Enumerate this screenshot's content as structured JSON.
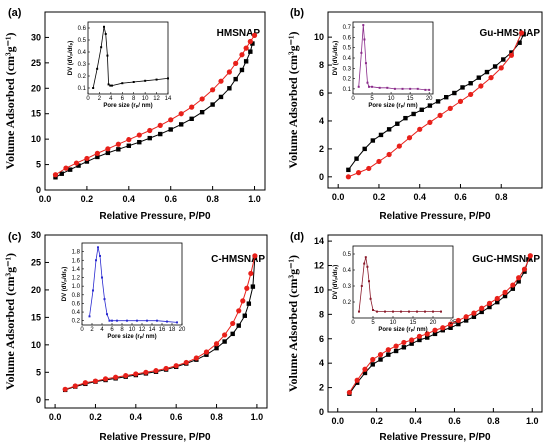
{
  "chart_data": [
    {
      "type": "line",
      "panel": "(a)",
      "sample": "HMSNAP",
      "xlabel": "Relative Pressure, P/P0",
      "ylabel": "Volume Adsorbed (cm³g⁻¹)",
      "xlim": [
        0,
        1.05
      ],
      "ylim": [
        0,
        35
      ],
      "xticks": [
        "0.0",
        "0.2",
        "0.4",
        "0.6",
        "0.8",
        "1.0"
      ],
      "yticks": [
        "0",
        "5",
        "10",
        "15",
        "20",
        "25",
        "30"
      ],
      "series": [
        {
          "color": "#000000",
          "marker": "square",
          "x": [
            0.05,
            0.08,
            0.12,
            0.16,
            0.2,
            0.25,
            0.3,
            0.35,
            0.4,
            0.45,
            0.5,
            0.55,
            0.6,
            0.65,
            0.7,
            0.75,
            0.8,
            0.84,
            0.88,
            0.91,
            0.94,
            0.96,
            0.98,
            0.99
          ],
          "y": [
            2.5,
            3.2,
            4.0,
            4.8,
            5.6,
            6.5,
            7.3,
            8.0,
            8.7,
            9.4,
            10.2,
            11.0,
            11.9,
            12.9,
            14.0,
            15.3,
            16.8,
            18.3,
            20.0,
            21.8,
            23.6,
            25.3,
            27.2,
            28.8
          ]
        },
        {
          "color": "#e8201a",
          "marker": "circle",
          "x": [
            0.05,
            0.1,
            0.15,
            0.2,
            0.25,
            0.3,
            0.35,
            0.4,
            0.45,
            0.5,
            0.55,
            0.6,
            0.65,
            0.7,
            0.75,
            0.8,
            0.84,
            0.88,
            0.91,
            0.94,
            0.96,
            0.98,
            1.0
          ],
          "y": [
            3.0,
            4.3,
            5.3,
            6.2,
            7.2,
            8.1,
            9.0,
            9.9,
            10.8,
            11.7,
            12.7,
            13.8,
            15.0,
            16.3,
            17.9,
            19.7,
            21.4,
            23.2,
            24.9,
            26.6,
            27.9,
            29.2,
            30.4
          ]
        }
      ],
      "inset": {
        "xlabel": "Pore size (rₚ/ nm)",
        "ylabel": "DV (dVₚ/drₚ)",
        "xlim": [
          0,
          14
        ],
        "ylim": [
          0.05,
          0.65
        ],
        "xticks": [
          "0",
          "2",
          "4",
          "6",
          "8",
          "10",
          "12",
          "14"
        ],
        "yticks": [
          "0.1",
          "0.2",
          "0.3",
          "0.4",
          "0.5",
          "0.6"
        ],
        "color": "#000000",
        "x": [
          0.9,
          1.6,
          2.3,
          2.8,
          3.1,
          3.4,
          3.6,
          3.9,
          4.2,
          6,
          8,
          10,
          12,
          14
        ],
        "y": [
          0.1,
          0.26,
          0.44,
          0.61,
          0.55,
          0.37,
          0.13,
          0.12,
          0.12,
          0.14,
          0.15,
          0.16,
          0.17,
          0.18
        ]
      }
    },
    {
      "type": "line",
      "panel": "(b)",
      "sample": "Gu-HMSNAP",
      "xlabel": "Relative Pressure, P/P0",
      "ylabel": "Volume Adsorbed (cm³g⁻¹)",
      "xlim": [
        -0.05,
        1.0
      ],
      "ylim": [
        -0.8,
        11.8
      ],
      "xticks": [
        "0.0",
        "0.2",
        "0.4",
        "0.6",
        "0.8"
      ],
      "yticks": [
        "0",
        "2",
        "4",
        "6",
        "8",
        "10"
      ],
      "series": [
        {
          "color": "#000000",
          "marker": "square",
          "x": [
            0.05,
            0.09,
            0.13,
            0.17,
            0.21,
            0.25,
            0.29,
            0.33,
            0.37,
            0.41,
            0.45,
            0.49,
            0.53,
            0.57,
            0.61,
            0.65,
            0.69,
            0.73,
            0.77,
            0.81,
            0.85,
            0.89,
            0.91
          ],
          "y": [
            0.5,
            1.3,
            2.0,
            2.6,
            3.0,
            3.4,
            3.8,
            4.2,
            4.5,
            4.8,
            5.1,
            5.4,
            5.7,
            6.0,
            6.4,
            6.7,
            7.1,
            7.5,
            7.9,
            8.4,
            8.9,
            9.6,
            10.2
          ]
        },
        {
          "color": "#e8201a",
          "marker": "circle",
          "x": [
            0.05,
            0.1,
            0.15,
            0.2,
            0.25,
            0.3,
            0.35,
            0.4,
            0.45,
            0.5,
            0.55,
            0.6,
            0.65,
            0.7,
            0.75,
            0.8,
            0.85,
            0.9
          ],
          "y": [
            0.0,
            0.3,
            0.6,
            1.1,
            1.6,
            2.2,
            2.8,
            3.4,
            3.9,
            4.4,
            4.9,
            5.4,
            5.9,
            6.5,
            7.1,
            7.8,
            8.7,
            10.3
          ]
        }
      ],
      "inset": {
        "xlabel": "Pore size (rₚ/ nm)",
        "ylabel": "DV (dVₚ/drₚ)",
        "xlim": [
          0,
          21
        ],
        "ylim": [
          0.05,
          0.75
        ],
        "xticks": [
          "0",
          "5",
          "10",
          "15",
          "20"
        ],
        "yticks": [
          "0.1",
          "0.2",
          "0.3",
          "0.4",
          "0.5",
          "0.6",
          "0.7"
        ],
        "color": "#8a2a8a",
        "x": [
          1.5,
          2.2,
          2.7,
          3.0,
          3.4,
          3.8,
          4.2,
          5,
          7,
          9,
          11,
          13,
          15,
          17,
          19,
          20
        ],
        "y": [
          0.12,
          0.45,
          0.72,
          0.58,
          0.35,
          0.16,
          0.12,
          0.12,
          0.11,
          0.11,
          0.1,
          0.1,
          0.1,
          0.1,
          0.09,
          0.09
        ]
      }
    },
    {
      "type": "line",
      "panel": "(c)",
      "sample": "C-HMSNAP",
      "xlabel": "Relative Pressure, P/P0",
      "ylabel": "Volume Adsorbed (cm³g⁻¹)",
      "xlim": [
        -0.05,
        1.05
      ],
      "ylim": [
        -1.5,
        30
      ],
      "xticks": [
        "0.0",
        "0.2",
        "0.4",
        "0.6",
        "0.8",
        "1.0"
      ],
      "yticks": [
        "0",
        "5",
        "10",
        "15",
        "20",
        "25",
        "30"
      ],
      "series": [
        {
          "color": "#000000",
          "marker": "square",
          "x": [
            0.05,
            0.1,
            0.15,
            0.2,
            0.25,
            0.3,
            0.35,
            0.4,
            0.45,
            0.5,
            0.55,
            0.6,
            0.65,
            0.7,
            0.75,
            0.8,
            0.84,
            0.88,
            0.91,
            0.94,
            0.96,
            0.98,
            0.99
          ],
          "y": [
            1.8,
            2.4,
            2.9,
            3.3,
            3.6,
            3.9,
            4.2,
            4.5,
            4.8,
            5.1,
            5.5,
            6.0,
            6.6,
            7.3,
            8.2,
            9.4,
            10.6,
            12.0,
            13.5,
            15.3,
            17.5,
            20.6,
            26.0
          ]
        },
        {
          "color": "#e8201a",
          "marker": "circle",
          "x": [
            0.05,
            0.1,
            0.15,
            0.2,
            0.25,
            0.3,
            0.35,
            0.4,
            0.45,
            0.5,
            0.55,
            0.6,
            0.65,
            0.7,
            0.75,
            0.8,
            0.84,
            0.88,
            0.91,
            0.93,
            0.95,
            0.97,
            0.99
          ],
          "y": [
            1.9,
            2.5,
            3.1,
            3.4,
            3.8,
            4.1,
            4.4,
            4.7,
            5.0,
            5.3,
            5.7,
            6.2,
            6.8,
            7.6,
            8.7,
            10.2,
            11.8,
            13.9,
            16.2,
            18.0,
            20.3,
            23.0,
            26.2
          ]
        }
      ],
      "inset": {
        "xlabel": "Pore size (rₚ/ nm)",
        "ylabel": "DV (dVₚ/drₚ)",
        "xlim": [
          0,
          20
        ],
        "ylim": [
          0.1,
          2.0
        ],
        "xticks": [
          "0",
          "2",
          "4",
          "6",
          "8",
          "10",
          "12",
          "14",
          "16",
          "18",
          "20"
        ],
        "yticks": [
          "0.2",
          "0.4",
          "0.6",
          "0.8",
          "1.0",
          "1.2",
          "1.4",
          "1.6",
          "1.8"
        ],
        "color": "#2a2ad0",
        "x": [
          1.5,
          2.2,
          2.8,
          3.2,
          3.6,
          4.0,
          4.5,
          5.0,
          5.5,
          6.0,
          7,
          9,
          11,
          13,
          15,
          17,
          19
        ],
        "y": [
          0.3,
          0.9,
          1.6,
          1.9,
          1.7,
          1.2,
          0.7,
          0.35,
          0.2,
          0.2,
          0.2,
          0.2,
          0.2,
          0.2,
          0.2,
          0.18,
          0.16
        ]
      }
    },
    {
      "type": "line",
      "panel": "(d)",
      "sample": "GuC-HMSNAP",
      "xlabel": "Relative Pressure, P/P0",
      "ylabel": "Volume Adsorbed (cm³g⁻¹)",
      "xlim": [
        -0.05,
        1.05
      ],
      "ylim": [
        0,
        14.5
      ],
      "xticks": [
        "0.0",
        "0.2",
        "0.4",
        "0.6",
        "0.8",
        "1.0"
      ],
      "yticks": [
        "0",
        "2",
        "4",
        "6",
        "8",
        "10",
        "12",
        "14"
      ],
      "series": [
        {
          "color": "#000000",
          "marker": "square",
          "x": [
            0.06,
            0.1,
            0.14,
            0.18,
            0.22,
            0.26,
            0.3,
            0.34,
            0.38,
            0.42,
            0.46,
            0.5,
            0.54,
            0.58,
            0.62,
            0.66,
            0.7,
            0.74,
            0.78,
            0.82,
            0.86,
            0.9,
            0.93,
            0.96,
            0.98
          ],
          "y": [
            1.5,
            2.4,
            3.2,
            3.9,
            4.3,
            4.7,
            5.0,
            5.3,
            5.6,
            5.9,
            6.1,
            6.4,
            6.7,
            6.9,
            7.2,
            7.5,
            7.8,
            8.2,
            8.6,
            9.0,
            9.5,
            10.1,
            10.7,
            11.5,
            12.5
          ]
        },
        {
          "color": "#e8201a",
          "marker": "circle",
          "x": [
            0.06,
            0.1,
            0.14,
            0.18,
            0.22,
            0.26,
            0.3,
            0.34,
            0.38,
            0.42,
            0.46,
            0.5,
            0.54,
            0.58,
            0.62,
            0.66,
            0.7,
            0.74,
            0.78,
            0.82,
            0.86,
            0.9,
            0.93,
            0.96,
            0.99
          ],
          "y": [
            1.6,
            2.6,
            3.5,
            4.3,
            4.7,
            5.1,
            5.4,
            5.7,
            5.9,
            6.2,
            6.4,
            6.7,
            6.9,
            7.2,
            7.5,
            7.8,
            8.1,
            8.5,
            8.9,
            9.3,
            9.8,
            10.4,
            11.0,
            11.7,
            12.8
          ]
        }
      ],
      "inset": {
        "xlabel": "Pore size (rₚ/ nm)",
        "ylabel": "DV (dVₚ/drₚ)",
        "xlim": [
          0,
          25
        ],
        "ylim": [
          0.1,
          0.55
        ],
        "xticks": [
          "0",
          "5",
          "10",
          "15",
          "20",
          "25"
        ],
        "yticks": [
          "0.2",
          "0.3",
          "0.4",
          "0.5"
        ],
        "color": "#8a1a2a",
        "x": [
          1.5,
          2.2,
          2.8,
          3.2,
          3.6,
          4.0,
          4.4,
          5,
          6,
          8,
          10,
          12,
          14,
          16,
          18,
          20,
          22
        ],
        "y": [
          0.14,
          0.3,
          0.44,
          0.48,
          0.42,
          0.33,
          0.22,
          0.15,
          0.14,
          0.14,
          0.14,
          0.14,
          0.14,
          0.14,
          0.14,
          0.14,
          0.14
        ]
      }
    }
  ]
}
